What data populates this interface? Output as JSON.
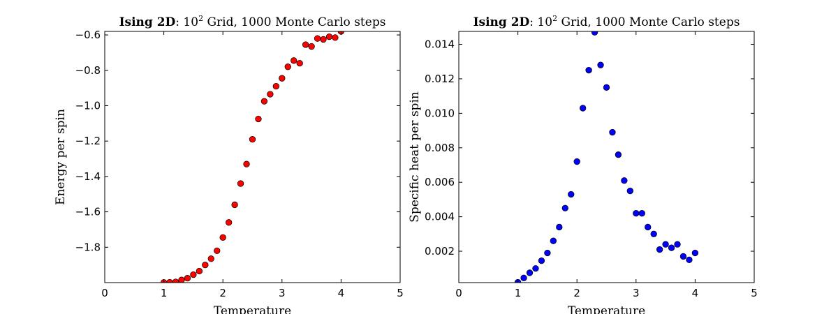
{
  "chart_data": [
    {
      "type": "scatter",
      "title": {
        "bold": "Ising 2D",
        "separator": ": ",
        "base": "10",
        "superscript": "2",
        "rest": " Grid, 1000 Monte Carlo steps"
      },
      "xlabel": "Temperature",
      "ylabel": "Energy per spin",
      "xlim": [
        0,
        5
      ],
      "ylim": [
        -2.0,
        -0.58
      ],
      "xticks": [
        0,
        1,
        2,
        3,
        4,
        5
      ],
      "xtick_labels": [
        "0",
        "1",
        "2",
        "3",
        "4",
        "5"
      ],
      "yticks": [
        -1.8,
        -1.6,
        -1.4,
        -1.2,
        -1.0,
        -0.8,
        -0.6
      ],
      "ytick_labels": [
        "−1.8",
        "−1.6",
        "−1.4",
        "−1.2",
        "−1.0",
        "−0.8",
        "−0.6"
      ],
      "marker_color": "#ff0000",
      "grid": false,
      "series": [
        {
          "x": [
            1.0,
            1.1,
            1.2,
            1.3,
            1.4,
            1.5,
            1.6,
            1.7,
            1.8,
            1.9,
            2.0,
            2.1,
            2.2,
            2.3,
            2.4,
            2.5,
            2.6,
            2.7,
            2.8,
            2.9,
            3.0,
            3.1,
            3.2,
            3.3,
            3.4,
            3.5,
            3.6,
            3.7,
            3.8,
            3.9,
            4.0
          ],
          "values": [
            -1.999,
            -1.998,
            -1.996,
            -1.985,
            -1.975,
            -1.955,
            -1.935,
            -1.9,
            -1.865,
            -1.82,
            -1.745,
            -1.66,
            -1.56,
            -1.44,
            -1.33,
            -1.19,
            -1.075,
            -0.975,
            -0.935,
            -0.89,
            -0.845,
            -0.78,
            -0.745,
            -0.76,
            -0.655,
            -0.665,
            -0.62,
            -0.625,
            -0.61,
            -0.615,
            -0.58
          ]
        }
      ]
    },
    {
      "type": "scatter",
      "title": {
        "bold": "Ising 2D",
        "separator": ": ",
        "base": "10",
        "superscript": "2",
        "rest": " Grid, 1000 Monte Carlo steps"
      },
      "xlabel": "Temperature",
      "ylabel": "Specific heat per spin",
      "xlim": [
        0,
        5
      ],
      "ylim": [
        0.00018,
        0.01475
      ],
      "xticks": [
        0,
        1,
        2,
        3,
        4,
        5
      ],
      "xtick_labels": [
        "0",
        "1",
        "2",
        "3",
        "4",
        "5"
      ],
      "yticks": [
        0.002,
        0.004,
        0.006,
        0.008,
        0.01,
        0.012,
        0.014
      ],
      "ytick_labels": [
        "0.002",
        "0.004",
        "0.006",
        "0.008",
        "0.010",
        "0.012",
        "0.014"
      ],
      "marker_color": "#0000ff",
      "grid": false,
      "series": [
        {
          "x": [
            1.0,
            1.1,
            1.2,
            1.3,
            1.4,
            1.5,
            1.6,
            1.7,
            1.8,
            1.9,
            2.0,
            2.1,
            2.2,
            2.3,
            2.4,
            2.5,
            2.6,
            2.7,
            2.8,
            2.9,
            3.0,
            3.1,
            3.2,
            3.3,
            3.4,
            3.5,
            3.6,
            3.7,
            3.8,
            3.9,
            4.0
          ],
          "values": [
            0.0002,
            0.00045,
            0.00075,
            0.001,
            0.00145,
            0.0019,
            0.0026,
            0.0034,
            0.0045,
            0.0053,
            0.0072,
            0.0103,
            0.0125,
            0.0147,
            0.0128,
            0.0115,
            0.0089,
            0.0076,
            0.0061,
            0.0055,
            0.0042,
            0.0042,
            0.0034,
            0.003,
            0.0021,
            0.0024,
            0.0022,
            0.0024,
            0.0017,
            0.0015,
            0.0019
          ]
        }
      ]
    }
  ]
}
